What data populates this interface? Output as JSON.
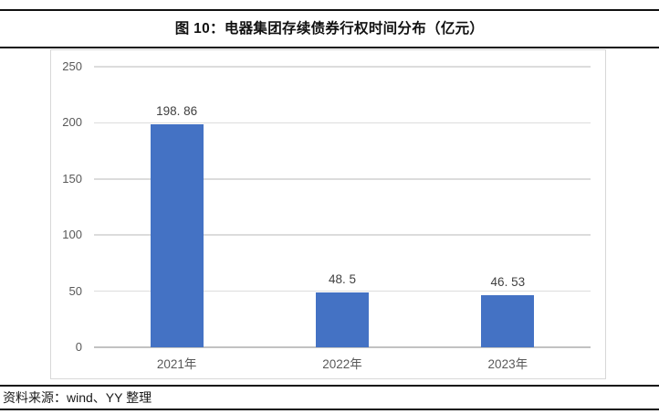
{
  "figure": {
    "title": "图 10：电器集团存续债券行权时间分布（亿元）",
    "source_note": "资料来源：wind、YY 整理"
  },
  "chart_data": {
    "type": "bar",
    "title": "图 10：电器集团存续债券行权时间分布（亿元）",
    "categories": [
      "2021年",
      "2022年",
      "2023年"
    ],
    "values": [
      198.86,
      48.5,
      46.53
    ],
    "value_labels": [
      "198. 86",
      "48. 5",
      "46. 53"
    ],
    "ytick_labels": [
      "0",
      "50",
      "100",
      "150",
      "200",
      "250"
    ],
    "yticks": [
      0,
      50,
      100,
      150,
      200,
      250
    ],
    "ylim": [
      0,
      250
    ],
    "xlabel": "",
    "ylabel": "",
    "grid": true,
    "legend": "none",
    "colors": {
      "bar": "#4472C4",
      "gridline": "#DCDCDC",
      "zero_line": "#C2C2C2",
      "axis_tick_label": "#595959",
      "value_label": "#404040",
      "frame_border": "#D8D8D8",
      "rule": "#111111"
    }
  }
}
